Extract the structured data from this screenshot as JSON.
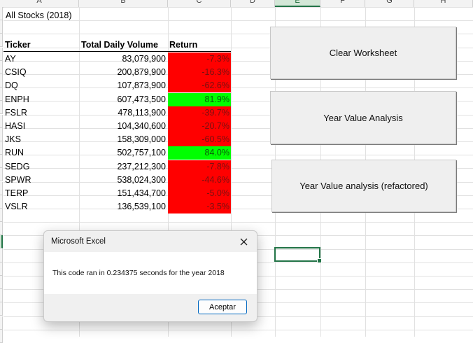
{
  "columns": [
    "A",
    "B",
    "C",
    "D",
    "E",
    "F",
    "G",
    "H"
  ],
  "selected_column": "E",
  "sheet_title": "All Stocks (2018)",
  "table": {
    "headers": {
      "ticker": "Ticker",
      "volume": "Total Daily Volume",
      "return": "Return"
    },
    "rows": [
      {
        "ticker": "AY",
        "volume": "83,079,900",
        "return": "-7.3%",
        "status": "negative"
      },
      {
        "ticker": "CSIQ",
        "volume": "200,879,900",
        "return": "-16.3%",
        "status": "negative"
      },
      {
        "ticker": "DQ",
        "volume": "107,873,900",
        "return": "-62.6%",
        "status": "negative"
      },
      {
        "ticker": "ENPH",
        "volume": "607,473,500",
        "return": "81.9%",
        "status": "positive"
      },
      {
        "ticker": "FSLR",
        "volume": "478,113,900",
        "return": "-39.7%",
        "status": "negative"
      },
      {
        "ticker": "HASI",
        "volume": "104,340,600",
        "return": "-20.7%",
        "status": "negative"
      },
      {
        "ticker": "JKS",
        "volume": "158,309,000",
        "return": "-60.5%",
        "status": "negative"
      },
      {
        "ticker": "RUN",
        "volume": "502,757,100",
        "return": "84.0%",
        "status": "positive"
      },
      {
        "ticker": "SEDG",
        "volume": "237,212,300",
        "return": "-7.8%",
        "status": "negative"
      },
      {
        "ticker": "SPWR",
        "volume": "538,024,300",
        "return": "-44.6%",
        "status": "negative"
      },
      {
        "ticker": "TERP",
        "volume": "151,434,700",
        "return": "-5.0%",
        "status": "negative"
      },
      {
        "ticker": "VSLR",
        "volume": "136,539,100",
        "return": "-3.5%",
        "status": "negative"
      }
    ]
  },
  "buttons": {
    "clear": "Clear Worksheet",
    "analysis": "Year Value Analysis",
    "refactored": "Year Value analysis (refactored)"
  },
  "dialog": {
    "title": "Microsoft Excel",
    "message": "This code ran in 0.234375 seconds for the year 2018",
    "ok_label": "Aceptar",
    "close_icon": "close-icon"
  },
  "colors": {
    "negative": "#ff0000",
    "positive": "#00ff00",
    "selection": "#217346"
  }
}
